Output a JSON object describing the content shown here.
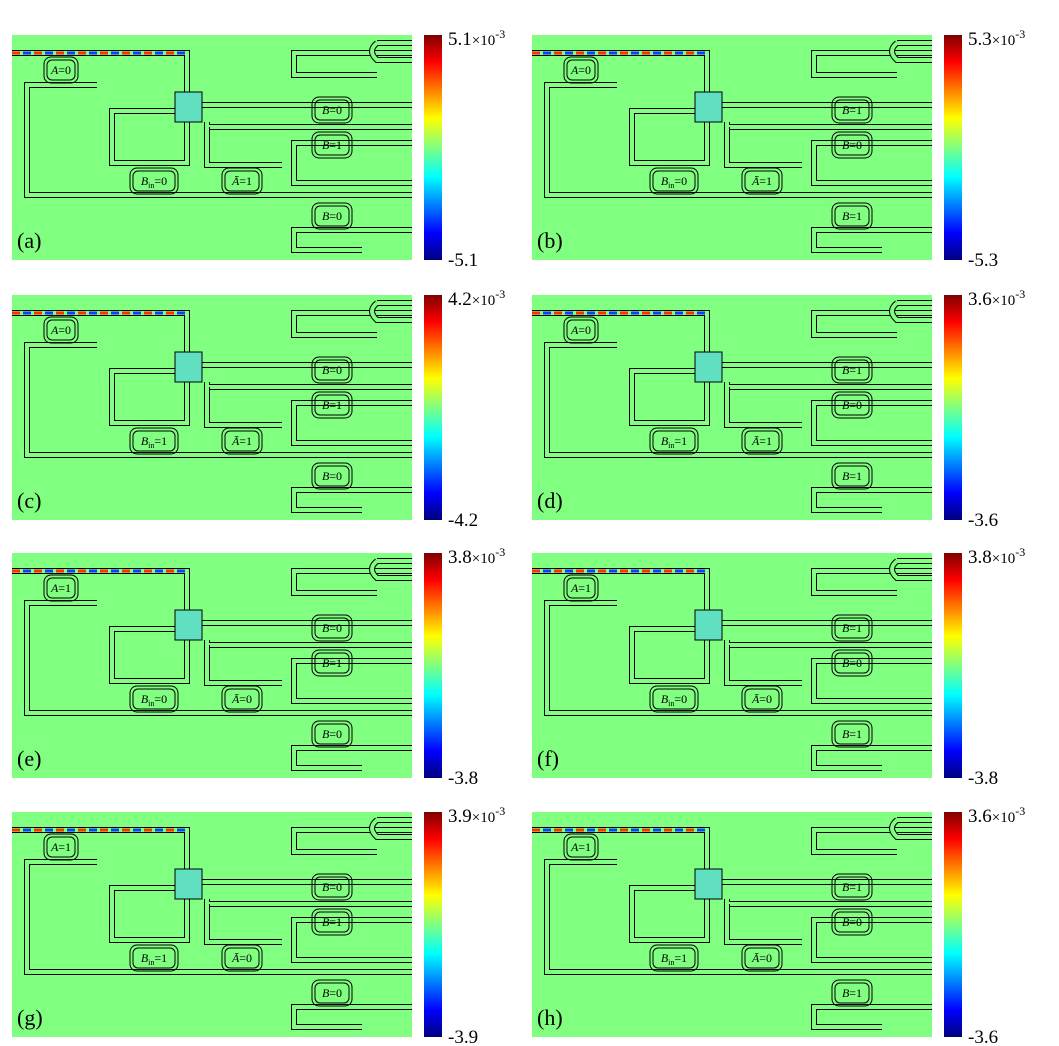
{
  "figure": {
    "exponent_base": "×10",
    "exponent_power": "-3",
    "panels": [
      {
        "label": "(a)",
        "cmax": 5.1,
        "cmin": -5.1,
        "rings": [
          {
            "name": "A",
            "state": "=0"
          },
          {
            "name": "B",
            "state": "=0"
          },
          {
            "name": "B̄",
            "state": "=1"
          },
          {
            "name": "B",
            "sub": "in",
            "state": "=0"
          },
          {
            "name": "Ā",
            "state": "=1"
          },
          {
            "name": "B",
            "state": "=0"
          }
        ]
      },
      {
        "label": "(b)",
        "cmax": 5.3,
        "cmin": -5.3,
        "rings": [
          {
            "name": "A",
            "state": "=0"
          },
          {
            "name": "B",
            "state": "=1"
          },
          {
            "name": "B̄",
            "state": "=0"
          },
          {
            "name": "B",
            "sub": "in",
            "state": "=0"
          },
          {
            "name": "Ā",
            "state": "=1"
          },
          {
            "name": "B",
            "state": "=1"
          }
        ]
      },
      {
        "label": "(c)",
        "cmax": 4.2,
        "cmin": -4.2,
        "rings": [
          {
            "name": "A",
            "state": "=0"
          },
          {
            "name": "B",
            "state": "=0"
          },
          {
            "name": "B̄",
            "state": "=1"
          },
          {
            "name": "B",
            "sub": "in",
            "state": "=1"
          },
          {
            "name": "Ā",
            "state": "=1"
          },
          {
            "name": "B",
            "state": "=0"
          }
        ]
      },
      {
        "label": "(d)",
        "cmax": 3.6,
        "cmin": -3.6,
        "rings": [
          {
            "name": "A",
            "state": "=0"
          },
          {
            "name": "B",
            "state": "=1"
          },
          {
            "name": "B̄",
            "state": "=0"
          },
          {
            "name": "B",
            "sub": "in",
            "state": "=1"
          },
          {
            "name": "Ā",
            "state": "=1"
          },
          {
            "name": "B",
            "state": "=1"
          }
        ]
      },
      {
        "label": "(e)",
        "cmax": 3.8,
        "cmin": -3.8,
        "rings": [
          {
            "name": "A",
            "state": "=1"
          },
          {
            "name": "B",
            "state": "=0"
          },
          {
            "name": "B̄",
            "state": "=1"
          },
          {
            "name": "B",
            "sub": "in",
            "state": "=0"
          },
          {
            "name": "Ā",
            "state": "=0"
          },
          {
            "name": "B",
            "state": "=0"
          }
        ]
      },
      {
        "label": "(f)",
        "cmax": 3.8,
        "cmin": -3.8,
        "rings": [
          {
            "name": "A",
            "state": "=1"
          },
          {
            "name": "B",
            "state": "=1"
          },
          {
            "name": "B̄",
            "state": "=0"
          },
          {
            "name": "B",
            "sub": "in",
            "state": "=0"
          },
          {
            "name": "Ā",
            "state": "=0"
          },
          {
            "name": "B",
            "state": "=1"
          }
        ]
      },
      {
        "label": "(g)",
        "cmax": 3.9,
        "cmin": -3.9,
        "rings": [
          {
            "name": "A",
            "state": "=1"
          },
          {
            "name": "B",
            "state": "=0"
          },
          {
            "name": "B̄",
            "state": "=1"
          },
          {
            "name": "B",
            "sub": "in",
            "state": "=1"
          },
          {
            "name": "Ā",
            "state": "=0"
          },
          {
            "name": "B",
            "state": "=0"
          }
        ]
      },
      {
        "label": "(h)",
        "cmax": 3.6,
        "cmin": -3.6,
        "rings": [
          {
            "name": "A",
            "state": "=1"
          },
          {
            "name": "B",
            "state": "=1"
          },
          {
            "name": "B̄",
            "state": "=0"
          },
          {
            "name": "B",
            "sub": "in",
            "state": "=1"
          },
          {
            "name": "Ā",
            "state": "=0"
          },
          {
            "name": "B",
            "state": "=1"
          }
        ]
      }
    ]
  }
}
